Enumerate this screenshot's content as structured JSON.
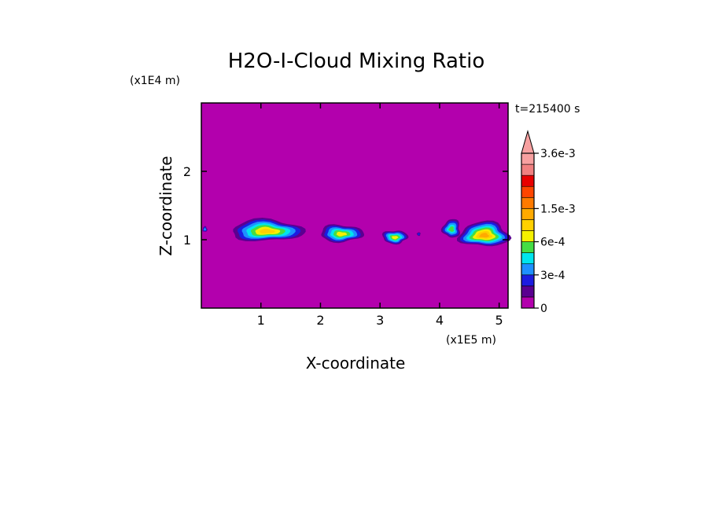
{
  "chart_data": {
    "type": "heatmap",
    "title": "H2O-I-Cloud Mixing Ratio",
    "xlabel": "X-coordinate",
    "ylabel": "Z-coordinate",
    "x_unit": "(x1E5 m)",
    "y_unit": "(x1E4 m)",
    "time_label": "t=215400 s",
    "xlim": [
      0,
      5.15
    ],
    "ylim": [
      0,
      3.0
    ],
    "x_ticks": [
      1,
      2,
      3,
      4,
      5
    ],
    "y_ticks": [
      1,
      2
    ],
    "background_color": "#b300ad",
    "colorbar": {
      "levels": [
        0,
        0.0001,
        0.0002,
        0.0003,
        0.0004,
        0.0005,
        0.0006,
        0.0009,
        0.0012,
        0.0015,
        0.0018,
        0.0021,
        0.0024,
        0.003,
        0.0036
      ],
      "colors": [
        "#b300ad",
        "#5a0090",
        "#1c1ce0",
        "#1e90ff",
        "#00e5ee",
        "#44dd44",
        "#f5f000",
        "#ffd000",
        "#ffaa00",
        "#ff7a00",
        "#ff4500",
        "#e80000",
        "#f08080",
        "#f7a0a0"
      ],
      "tick_labels": [
        {
          "value": 0,
          "label": "0"
        },
        {
          "value": 0.0003,
          "label": "3e-4"
        },
        {
          "value": 0.0006,
          "label": "6e-4"
        },
        {
          "value": 0.0015,
          "label": "1.5e-3"
        },
        {
          "value": 0.0036,
          "label": "3.6e-3"
        }
      ],
      "extend": "max"
    },
    "clouds": [
      {
        "x": 0.06,
        "z": 1.15,
        "w": 0.08,
        "h": 0.09,
        "peak": 0.0003
      },
      {
        "x": 1.1,
        "z": 1.12,
        "w": 1.22,
        "h": 0.35,
        "peak": 0.0009
      },
      {
        "x": 2.35,
        "z": 1.08,
        "w": 0.72,
        "h": 0.28,
        "peak": 0.0008
      },
      {
        "x": 3.25,
        "z": 1.03,
        "w": 0.42,
        "h": 0.22,
        "peak": 0.0007
      },
      {
        "x": 3.65,
        "z": 1.08,
        "w": 0.06,
        "h": 0.06,
        "peak": 0.0002
      },
      {
        "x": 4.2,
        "z": 1.15,
        "w": 0.3,
        "h": 0.3,
        "peak": 0.0005
      },
      {
        "x": 4.75,
        "z": 1.06,
        "w": 0.85,
        "h": 0.4,
        "peak": 0.0012
      }
    ]
  }
}
